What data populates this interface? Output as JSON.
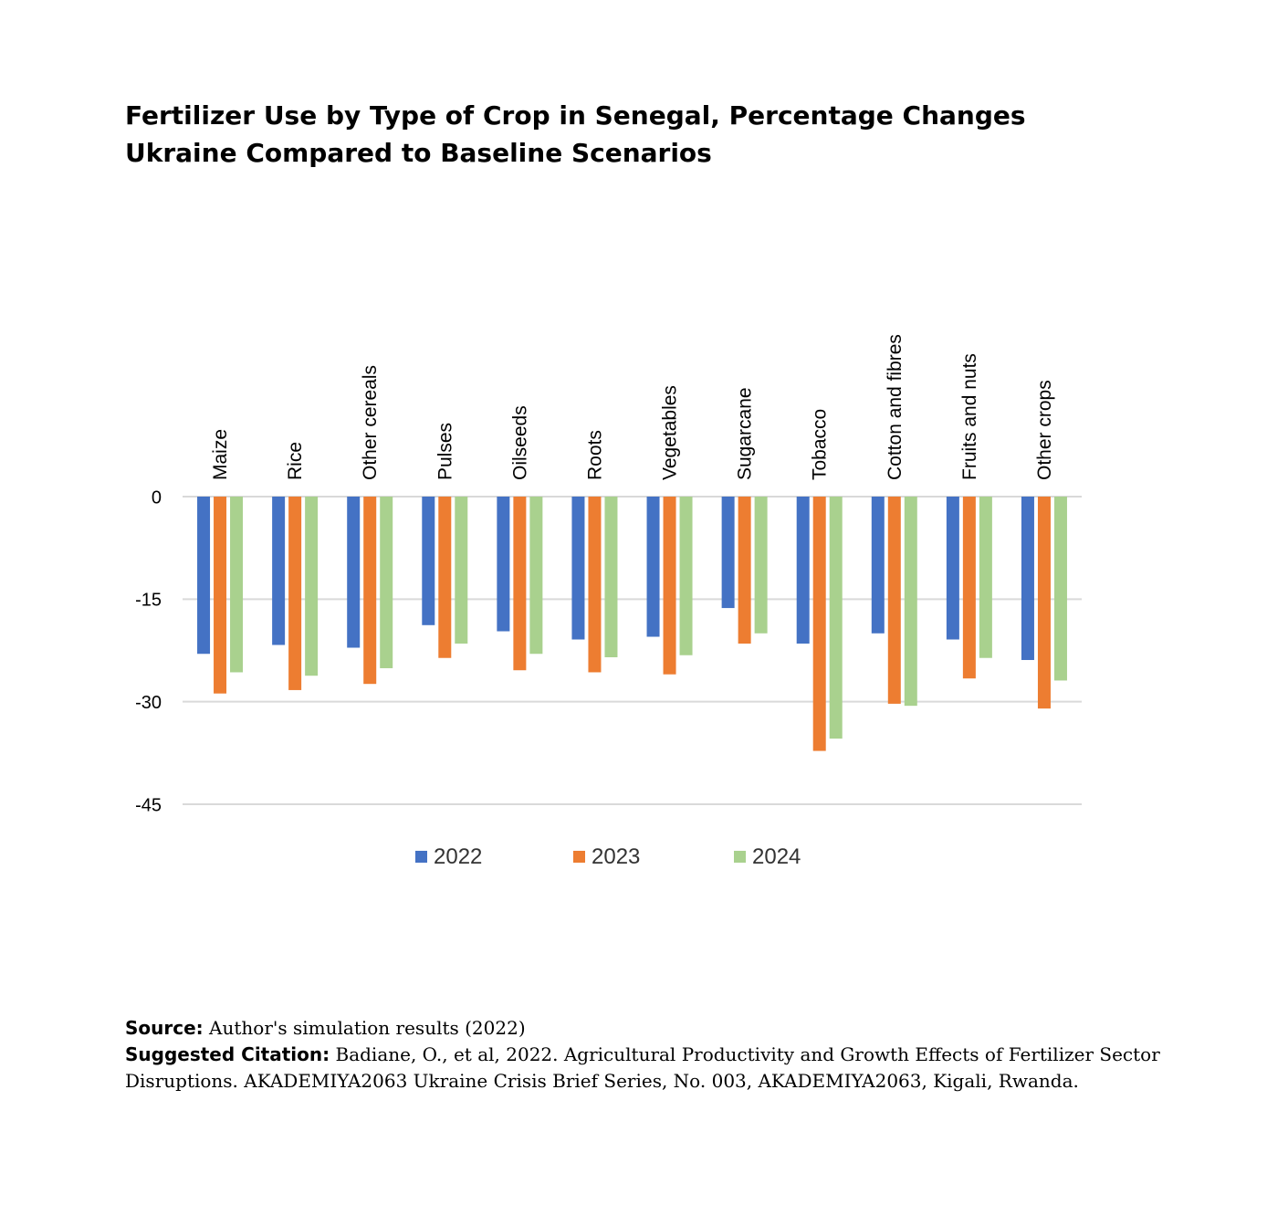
{
  "title_lines": [
    "Fertilizer Use by Type of Crop in Senegal, Percentage Changes",
    "Ukraine Compared to Baseline Scenarios"
  ],
  "source": {
    "label": "Source:",
    "text": "Author's simulation results (2022)"
  },
  "citation": {
    "label": "Suggested Citation:",
    "text": "Badiane, O., et al, 2022. Agricultural Productivity and Growth Effects of Fertilizer Sector Disruptions. AKADEMIYA2063 Ukraine Crisis Brief Series, No. 003, AKADEMIYA2063, Kigali, Rwanda."
  },
  "chart_data": {
    "type": "bar",
    "title": "Fertilizer Use by Type of Crop in Senegal, Percentage Changes Ukraine Compared to Baseline Scenarios",
    "categories": [
      "Maize",
      "Rice",
      "Other cereals",
      "Pulses",
      "Oilseeds",
      "Roots",
      "Vegetables",
      "Sugarcane",
      "Tobacco",
      "Cotton and fibres",
      "Fruits and nuts",
      "Other crops"
    ],
    "series": [
      {
        "name": "2022",
        "color": "#4472C4",
        "values": [
          -23.0,
          -21.7,
          -22.1,
          -18.8,
          -19.7,
          -20.9,
          -20.5,
          -16.3,
          -21.5,
          -20.0,
          -20.9,
          -23.9
        ]
      },
      {
        "name": "2023",
        "color": "#ED7D31",
        "values": [
          -28.8,
          -28.3,
          -27.4,
          -23.6,
          -25.4,
          -25.7,
          -26.0,
          -21.5,
          -37.2,
          -30.3,
          -26.6,
          -31.0
        ]
      },
      {
        "name": "2024",
        "color": "#A9D18E",
        "values": [
          -25.7,
          -26.2,
          -25.1,
          -21.5,
          -23.0,
          -23.5,
          -23.2,
          -20.0,
          -35.4,
          -30.6,
          -23.6,
          -26.9
        ]
      }
    ],
    "ylim": [
      -45,
      0
    ],
    "yticks": [
      0,
      -15,
      -30,
      -45
    ],
    "grid": true,
    "legend_position": "bottom",
    "xlabel": "",
    "ylabel": ""
  }
}
